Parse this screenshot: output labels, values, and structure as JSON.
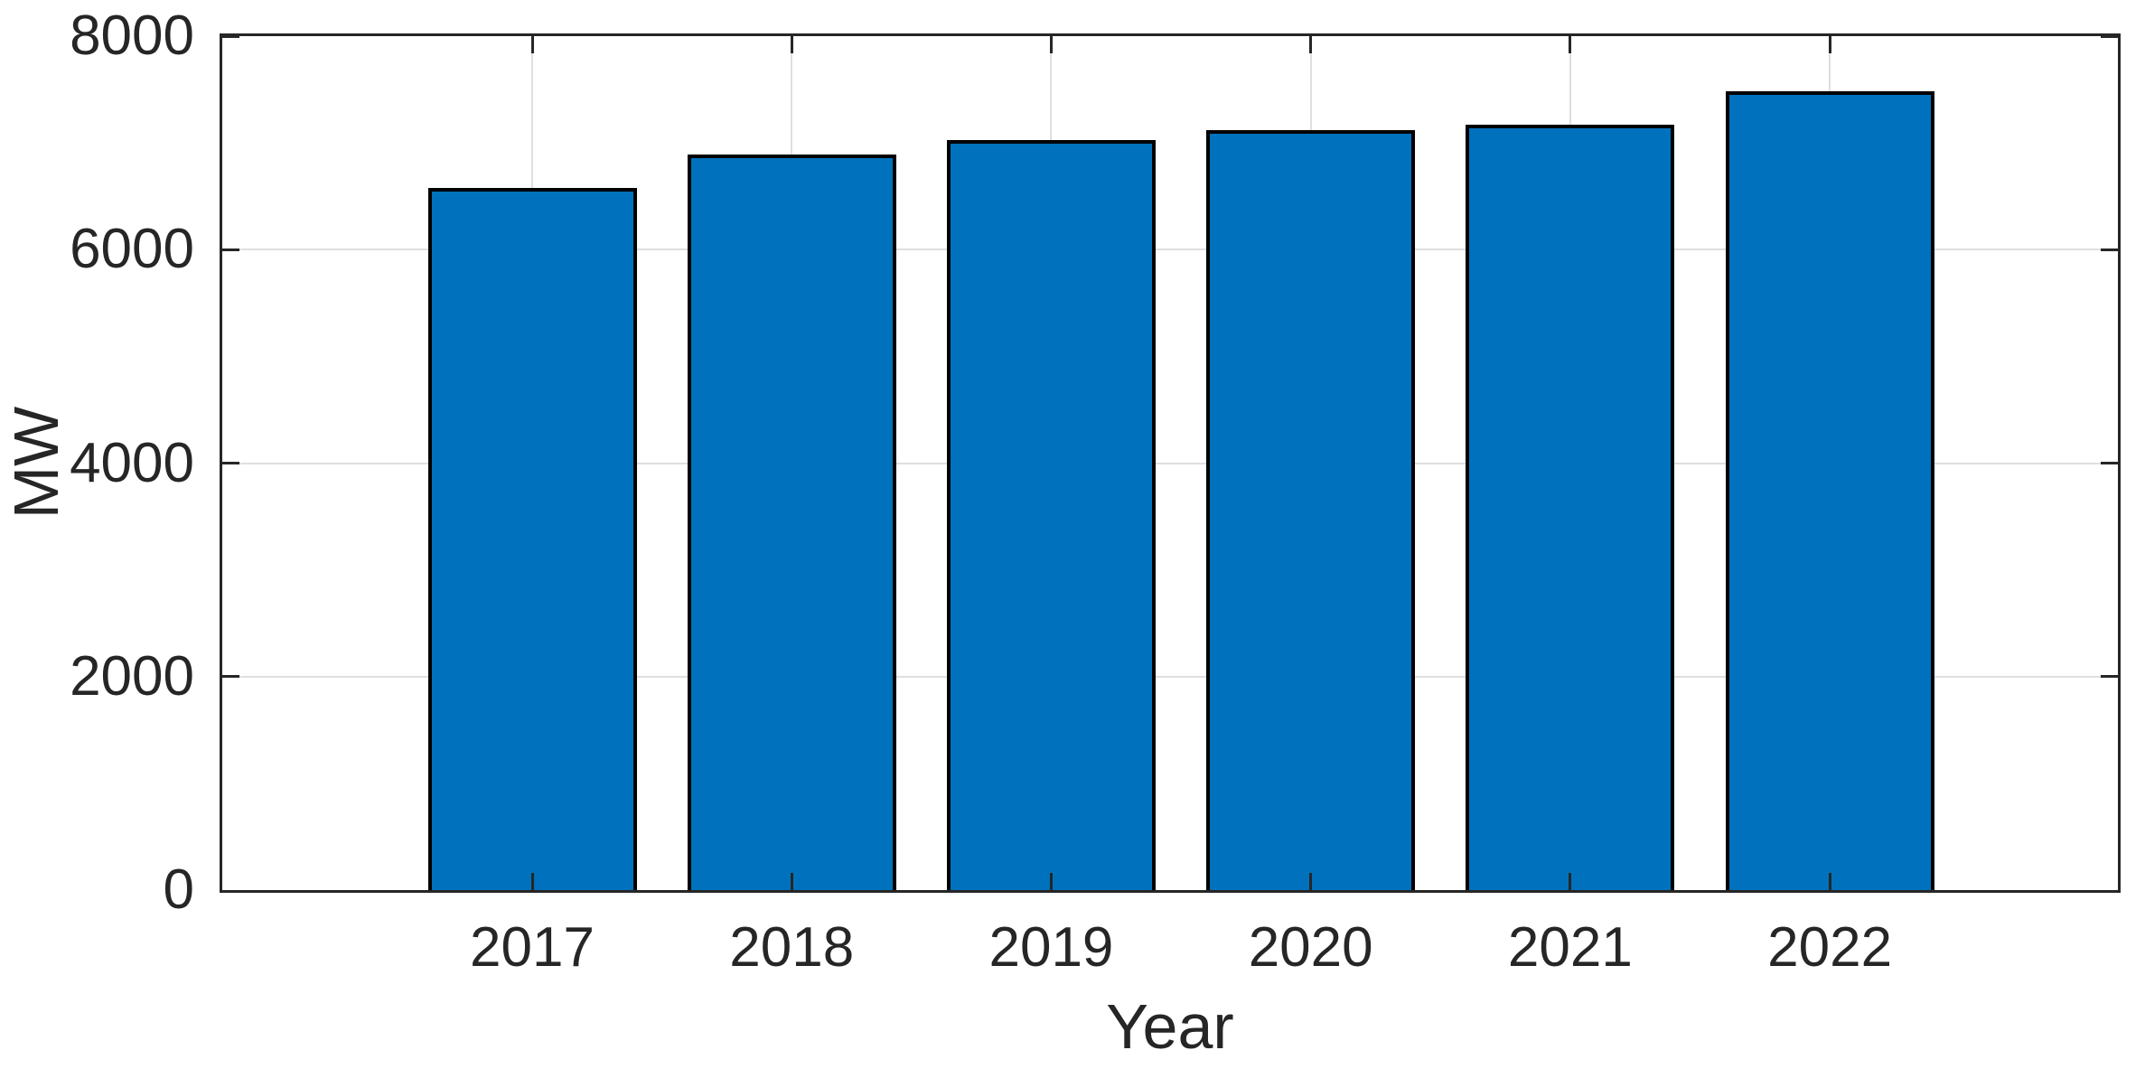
{
  "chart_data": {
    "type": "bar",
    "title": "",
    "xlabel": "Year",
    "ylabel": "MW",
    "categories": [
      "2017",
      "2018",
      "2019",
      "2020",
      "2021",
      "2022"
    ],
    "values": [
      6580,
      6890,
      7030,
      7120,
      7170,
      7480
    ],
    "ylim": [
      0,
      8000
    ],
    "yticks": [
      0,
      2000,
      4000,
      6000,
      8000
    ],
    "grid": true,
    "legend": "none",
    "bar_color": "#0072BD",
    "bar_edge_color": "#000000",
    "axis_color": "#262626",
    "grid_color": "#dfdfdf",
    "background_color": "#ffffff",
    "layout": {
      "x_first_center_frac": 0.1635,
      "x_step_frac": 0.1369,
      "bar_width_frac": 0.1098
    }
  }
}
